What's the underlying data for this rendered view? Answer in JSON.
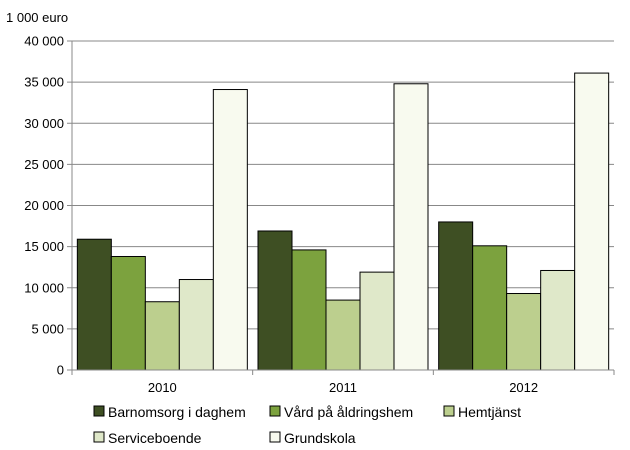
{
  "chart_data": {
    "type": "bar",
    "unit_label": "1 000 euro",
    "categories": [
      "2010",
      "2011",
      "2012"
    ],
    "ylim": [
      0,
      40000
    ],
    "y_ticks": [
      0,
      5000,
      10000,
      15000,
      20000,
      25000,
      30000,
      35000,
      40000
    ],
    "y_tick_labels": [
      "0",
      "5 000",
      "10 000",
      "15 000",
      "20 000",
      "25 000",
      "30 000",
      "35 000",
      "40 000"
    ],
    "grid": true,
    "legend_position": "bottom",
    "series": [
      {
        "name": "Barnomsorg i daghem",
        "color": "#3e4f23",
        "values": [
          15900,
          16900,
          18000
        ]
      },
      {
        "name": "Vård på åldringshem",
        "color": "#7ca23e",
        "values": [
          13800,
          14600,
          15100
        ]
      },
      {
        "name": "Hemtjänst",
        "color": "#bccf8e",
        "values": [
          8300,
          8500,
          9300
        ]
      },
      {
        "name": "Serviceboende",
        "color": "#dfe8c9",
        "values": [
          11000,
          11900,
          12100
        ]
      },
      {
        "name": "Grundskola",
        "color": "#f8faef",
        "values": [
          34100,
          34800,
          36100
        ]
      }
    ]
  }
}
